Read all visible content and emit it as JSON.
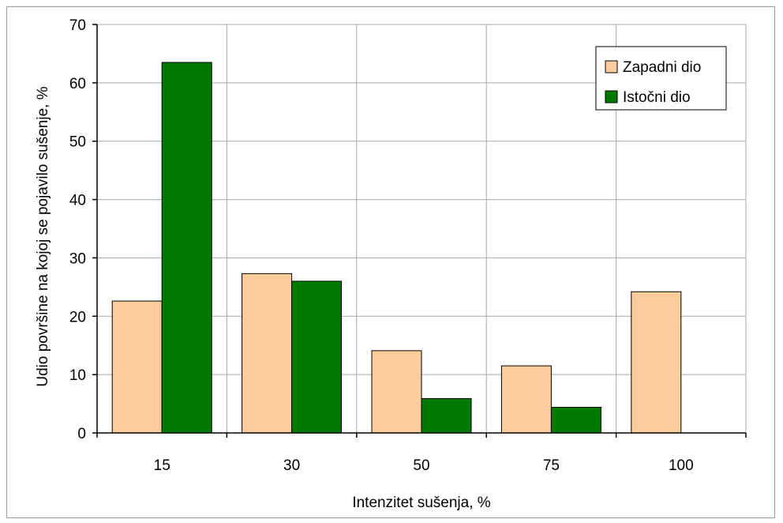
{
  "chart_data": {
    "type": "bar",
    "categories": [
      "15",
      "30",
      "50",
      "75",
      "100"
    ],
    "series": [
      {
        "name": "Zapadni dio",
        "values": [
          22.6,
          27.3,
          14.1,
          11.5,
          24.2
        ],
        "color": "#fccc9c"
      },
      {
        "name": "Istočni dio",
        "values": [
          63.5,
          26.0,
          5.9,
          4.4,
          0
        ],
        "color": "#007a00"
      }
    ],
    "xlabel": "Intenzitet sušenja, %",
    "ylabel": "Udio površine na kojoj se pojavilo sušenje, %",
    "ylim": [
      0,
      70
    ],
    "yticks": [
      "0",
      "10",
      "20",
      "30",
      "40",
      "50",
      "60",
      "70"
    ],
    "grid": true,
    "legend_position": "top-right"
  }
}
